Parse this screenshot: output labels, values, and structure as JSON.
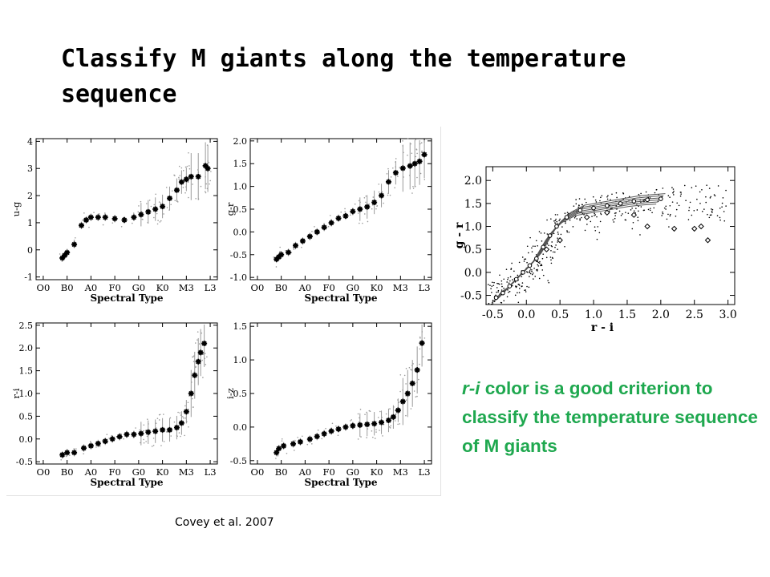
{
  "slide": {
    "title": "Classify M giants along the temperature sequence",
    "note_italic": "r-i",
    "note_rest": " color is a good criterion to classify the temperature sequence of M giants",
    "citation": "Covey et al. 2007"
  },
  "colors": {
    "note_green": "#1fa84f",
    "markers": "#000000",
    "scatter": "#9a9a9a"
  },
  "chart_data": [
    {
      "type": "scatter",
      "xlabel": "Spectral Type",
      "ylabel": "u-g",
      "categories": [
        "O0",
        "B0",
        "A0",
        "F0",
        "G0",
        "K0",
        "M3",
        "L3"
      ],
      "category_positions": [
        0,
        1,
        2,
        3,
        4,
        5,
        6,
        7
      ],
      "yticks": [
        -1,
        0,
        1,
        2,
        3,
        4
      ],
      "ylim": [
        -1.1,
        4.1
      ],
      "series": [
        {
          "x": [
            0.8,
            0.9,
            1.0,
            1.3,
            1.6,
            1.8,
            2.0,
            2.3,
            2.6,
            3.0,
            3.4,
            3.8,
            4.1,
            4.4,
            4.7,
            5.0,
            5.3,
            5.6,
            5.8,
            6.0,
            6.2,
            6.5,
            6.8,
            6.9
          ],
          "y": [
            -0.3,
            -0.2,
            -0.1,
            0.2,
            0.9,
            1.1,
            1.2,
            1.2,
            1.2,
            1.15,
            1.1,
            1.2,
            1.3,
            1.4,
            1.5,
            1.6,
            1.9,
            2.2,
            2.5,
            2.6,
            2.7,
            2.7,
            3.1,
            3.0
          ]
        }
      ]
    },
    {
      "type": "scatter",
      "xlabel": "Spectral Type",
      "ylabel": "g-r",
      "categories": [
        "O0",
        "B0",
        "A0",
        "F0",
        "G0",
        "K0",
        "M3",
        "L3"
      ],
      "category_positions": [
        0,
        1,
        2,
        3,
        4,
        5,
        6,
        7
      ],
      "yticks": [
        -1.0,
        -0.5,
        0.0,
        0.5,
        1.0,
        1.5,
        2.0
      ],
      "ylim": [
        -1.05,
        2.05
      ],
      "series": [
        {
          "x": [
            0.8,
            0.9,
            1.0,
            1.3,
            1.6,
            1.9,
            2.2,
            2.5,
            2.8,
            3.1,
            3.4,
            3.7,
            4.0,
            4.3,
            4.6,
            4.9,
            5.2,
            5.5,
            5.8,
            6.1,
            6.4,
            6.6,
            6.8,
            7.0
          ],
          "y": [
            -0.6,
            -0.55,
            -0.5,
            -0.45,
            -0.3,
            -0.2,
            -0.1,
            0.0,
            0.1,
            0.2,
            0.3,
            0.35,
            0.45,
            0.5,
            0.55,
            0.65,
            0.8,
            1.1,
            1.3,
            1.4,
            1.45,
            1.5,
            1.55,
            1.7
          ]
        }
      ]
    },
    {
      "type": "scatter",
      "xlabel": "Spectral Type",
      "ylabel": "r-i",
      "categories": [
        "O0",
        "B0",
        "A0",
        "F0",
        "G0",
        "K0",
        "M3",
        "L3"
      ],
      "category_positions": [
        0,
        1,
        2,
        3,
        4,
        5,
        6,
        7
      ],
      "yticks": [
        -0.5,
        0.0,
        0.5,
        1.0,
        1.5,
        2.0,
        2.5
      ],
      "ylim": [
        -0.55,
        2.55
      ],
      "series": [
        {
          "x": [
            0.8,
            1.0,
            1.3,
            1.7,
            2.0,
            2.3,
            2.6,
            2.9,
            3.2,
            3.5,
            3.8,
            4.1,
            4.4,
            4.7,
            5.0,
            5.3,
            5.6,
            5.8,
            6.0,
            6.2,
            6.35,
            6.5,
            6.6,
            6.75
          ],
          "y": [
            -0.35,
            -0.3,
            -0.3,
            -0.2,
            -0.15,
            -0.1,
            -0.05,
            0.0,
            0.05,
            0.1,
            0.1,
            0.12,
            0.15,
            0.17,
            0.2,
            0.2,
            0.25,
            0.35,
            0.6,
            1.0,
            1.4,
            1.7,
            1.9,
            2.1
          ]
        }
      ]
    },
    {
      "type": "scatter",
      "xlabel": "Spectral Type",
      "ylabel": "i-z",
      "categories": [
        "O0",
        "B0",
        "A0",
        "F0",
        "G0",
        "K0",
        "M3",
        "L3"
      ],
      "category_positions": [
        0,
        1,
        2,
        3,
        4,
        5,
        6,
        7
      ],
      "yticks": [
        -0.5,
        0.0,
        0.5,
        1.0,
        1.5
      ],
      "ylim": [
        -0.55,
        1.55
      ],
      "series": [
        {
          "x": [
            0.8,
            0.9,
            1.1,
            1.5,
            1.8,
            2.2,
            2.5,
            2.8,
            3.1,
            3.4,
            3.7,
            4.0,
            4.3,
            4.6,
            4.9,
            5.2,
            5.5,
            5.7,
            5.9,
            6.1,
            6.3,
            6.5,
            6.7,
            6.9
          ],
          "y": [
            -0.38,
            -0.32,
            -0.28,
            -0.25,
            -0.22,
            -0.18,
            -0.14,
            -0.1,
            -0.06,
            -0.03,
            0.0,
            0.02,
            0.03,
            0.04,
            0.05,
            0.07,
            0.1,
            0.15,
            0.25,
            0.38,
            0.5,
            0.65,
            0.85,
            1.25
          ]
        }
      ]
    },
    {
      "type": "scatter",
      "xlabel": "r - i",
      "ylabel": "g - r",
      "xticks": [
        -0.5,
        0.0,
        0.5,
        1.0,
        1.5,
        2.0,
        2.5,
        3.0
      ],
      "yticks": [
        -0.5,
        0.0,
        0.5,
        1.0,
        1.5,
        2.0
      ],
      "xlim": [
        -0.6,
        3.1
      ],
      "ylim": [
        -0.7,
        2.3
      ],
      "series": [
        {
          "name": "",
          "x": [
            -0.45,
            -0.35,
            -0.25,
            -0.15,
            -0.05,
            0.05,
            0.15,
            0.25,
            0.35,
            0.45,
            0.6,
            0.8,
            1.0,
            1.2,
            1.4,
            1.6,
            1.8,
            2.0
          ],
          "y": [
            -0.55,
            -0.45,
            -0.3,
            -0.15,
            0.0,
            0.15,
            0.3,
            0.55,
            0.8,
            1.0,
            1.2,
            1.35,
            1.4,
            1.45,
            1.5,
            1.55,
            1.58,
            1.6
          ]
        },
        {
          "name": "",
          "x": [
            0.3,
            0.5,
            0.9,
            1.2,
            1.6,
            1.8,
            2.2,
            2.5,
            2.6,
            2.7
          ],
          "y": [
            0.5,
            0.7,
            1.2,
            1.3,
            1.25,
            1.0,
            0.95,
            0.95,
            1.0,
            0.7
          ]
        }
      ]
    }
  ]
}
